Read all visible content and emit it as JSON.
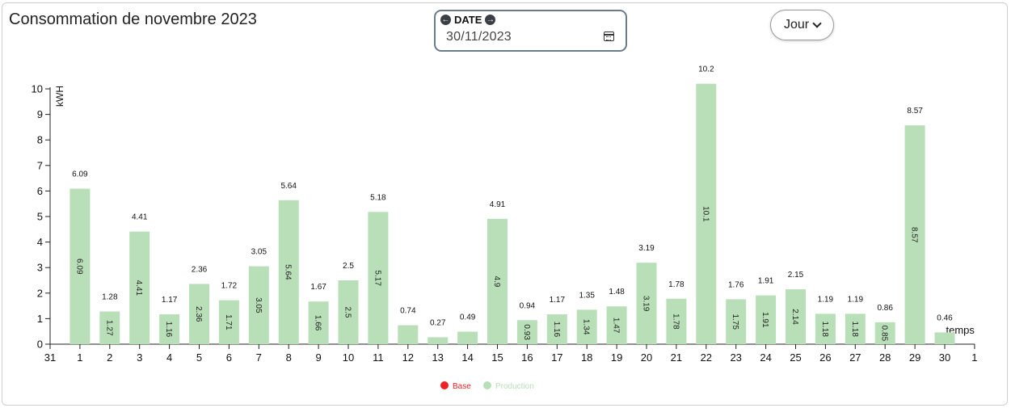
{
  "header": {
    "title": "Consommation de novembre 2023",
    "date_label": "DATE",
    "date_value": "30/11/2023",
    "period_button": "Jour"
  },
  "colors": {
    "production": "#b9dfb9",
    "base": "#ee2222"
  },
  "chart_data": {
    "type": "bar",
    "ylabel": "kWH",
    "xlabel": "temps",
    "ylim": [
      0,
      10
    ],
    "y_ticks": [
      "0",
      "1",
      "2",
      "3",
      "4",
      "5",
      "6",
      "7",
      "8",
      "9",
      "10"
    ],
    "x_tick_labels": [
      "31",
      "1",
      "2",
      "3",
      "4",
      "5",
      "6",
      "7",
      "8",
      "9",
      "10",
      "11",
      "12",
      "13",
      "14",
      "15",
      "16",
      "17",
      "18",
      "19",
      "20",
      "21",
      "22",
      "23",
      "24",
      "25",
      "26",
      "27",
      "28",
      "29",
      "30",
      "1"
    ],
    "categories": [
      "1",
      "2",
      "3",
      "4",
      "5",
      "6",
      "7",
      "8",
      "9",
      "10",
      "11",
      "12",
      "13",
      "14",
      "15",
      "16",
      "17",
      "18",
      "19",
      "20",
      "21",
      "22",
      "23",
      "24",
      "25",
      "26",
      "27",
      "28",
      "29",
      "30"
    ],
    "values": [
      6.09,
      1.28,
      4.41,
      1.17,
      2.36,
      1.72,
      3.05,
      5.64,
      1.67,
      2.5,
      5.18,
      0.74,
      0.27,
      0.49,
      4.91,
      0.94,
      1.17,
      1.35,
      1.48,
      3.19,
      1.78,
      10.2,
      1.76,
      1.91,
      2.15,
      1.19,
      1.19,
      0.86,
      8.57,
      0.46
    ],
    "top_labels": [
      "6.09",
      "1.28",
      "4.41",
      "1.17",
      "2.36",
      "1.72",
      "3.05",
      "5.64",
      "1.67",
      "2.5",
      "5.18",
      "0.74",
      "0.27",
      "0.49",
      "4.91",
      "0.94",
      "1.17",
      "1.35",
      "1.48",
      "3.19",
      "1.78",
      "10.2",
      "1.76",
      "1.91",
      "2.15",
      "1.19",
      "1.19",
      "0.86",
      "8.57",
      "0.46"
    ],
    "inner_labels": [
      "6.09",
      "1.27",
      "4.41",
      "1.16",
      "2.36",
      "1.71",
      "3.05",
      "5.64",
      "1.66",
      "2.5",
      "5.17",
      "",
      "",
      "",
      "4.9",
      "0.93",
      "1.16",
      "1.34",
      "1.47",
      "3.19",
      "1.78",
      "10.1",
      "1.75",
      "1.91",
      "2.14",
      "1.18",
      "1.18",
      "0.85",
      "8.57",
      ""
    ],
    "legend": [
      {
        "name": "Base",
        "color": "#ee2222"
      },
      {
        "name": "Production",
        "color": "#b9dfb9"
      }
    ],
    "legend_position": "bottom-center"
  }
}
